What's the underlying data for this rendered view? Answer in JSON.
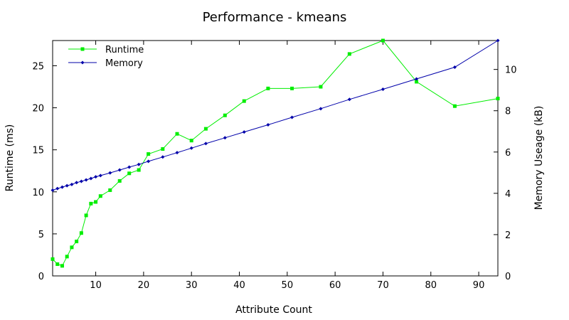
{
  "chart_data": {
    "type": "line",
    "title": "Performance - kmeans",
    "xlabel": "Attribute Count",
    "ylabel": "Runtime (ms)",
    "y2label": "Memory Useage (kB)",
    "xlim": [
      1,
      94
    ],
    "ylim": [
      0,
      28
    ],
    "y2lim": [
      0,
      11.4
    ],
    "xticks": [
      10,
      20,
      30,
      40,
      50,
      60,
      70,
      80,
      90
    ],
    "yticks": [
      0,
      5,
      10,
      15,
      20,
      25
    ],
    "y2ticks": [
      0,
      2,
      4,
      6,
      8,
      10
    ],
    "grid": false,
    "legend_position": "top-left",
    "series": [
      {
        "name": "Runtime",
        "axis": "left",
        "color": "#00ee00",
        "marker": "square",
        "x": [
          1,
          2,
          3,
          4,
          5,
          6,
          7,
          8,
          9,
          10,
          11,
          13,
          15,
          17,
          19,
          21,
          24,
          27,
          30,
          33,
          37,
          41,
          46,
          51,
          57,
          63,
          70,
          77,
          85,
          94
        ],
        "y": [
          2.0,
          1.4,
          1.2,
          2.3,
          3.4,
          4.1,
          5.1,
          7.2,
          8.6,
          8.8,
          9.5,
          10.2,
          11.3,
          12.2,
          12.6,
          14.5,
          15.1,
          16.9,
          16.1,
          17.5,
          19.1,
          20.8,
          22.3,
          22.3,
          22.5,
          26.4,
          28.0,
          23.1,
          20.2,
          21.1
        ]
      },
      {
        "name": "Memory",
        "axis": "right",
        "color": "#0000aa",
        "marker": "diamond",
        "x": [
          1,
          2,
          3,
          4,
          5,
          6,
          7,
          8,
          9,
          10,
          11,
          13,
          15,
          17,
          19,
          21,
          24,
          27,
          30,
          33,
          37,
          41,
          46,
          51,
          57,
          63,
          70,
          77,
          85,
          94
        ],
        "y": [
          4.15,
          4.23,
          4.3,
          4.37,
          4.43,
          4.52,
          4.58,
          4.65,
          4.72,
          4.8,
          4.86,
          4.99,
          5.13,
          5.27,
          5.4,
          5.55,
          5.76,
          5.97,
          6.19,
          6.41,
          6.69,
          6.97,
          7.32,
          7.68,
          8.1,
          8.55,
          9.04,
          9.54,
          10.11,
          11.4
        ]
      }
    ]
  }
}
